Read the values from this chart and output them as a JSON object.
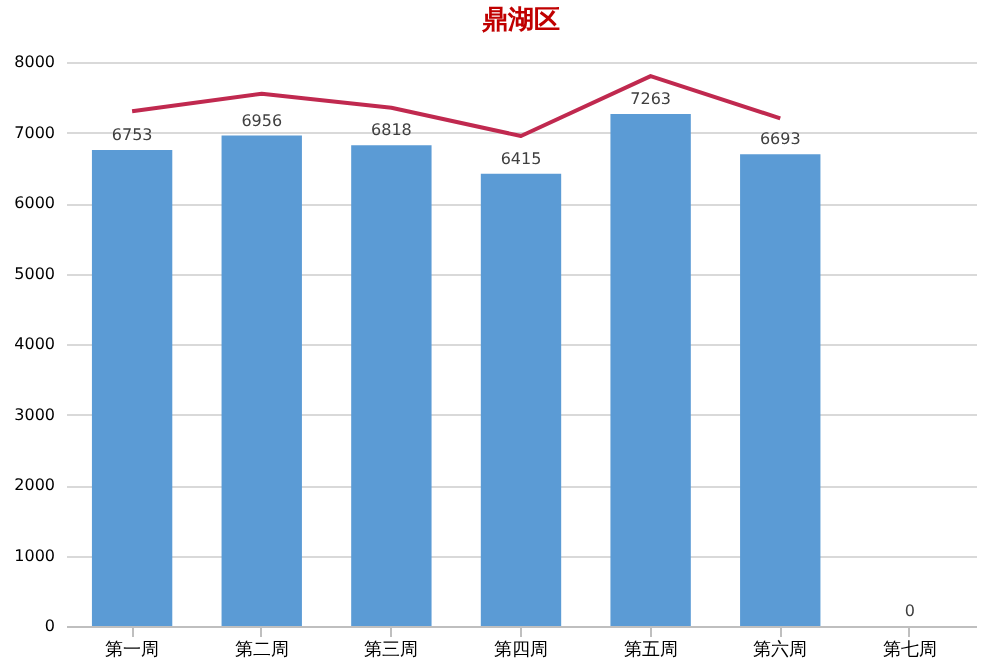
{
  "chart_data": {
    "type": "bar",
    "title": "鼎湖区",
    "categories": [
      "第一周",
      "第二周",
      "第三周",
      "第四周",
      "第五周",
      "第六周",
      "第七周"
    ],
    "series": [
      {
        "color": "#5b9bd5",
        "values": [
          6753,
          6956,
          6818,
          6415,
          7263,
          6693,
          0
        ],
        "value_labels": [
          "6753",
          "6956",
          "6818",
          "6415",
          "7263",
          "6693",
          "0"
        ]
      },
      {
        "type": "line",
        "color": "#c0294f",
        "values": [
          7300,
          7550,
          7350,
          6950,
          7800,
          7200,
          null
        ]
      }
    ],
    "ylim": [
      0,
      8000
    ],
    "yticks": [
      0,
      1000,
      2000,
      3000,
      4000,
      5000,
      6000,
      7000,
      8000
    ],
    "grid": "y"
  }
}
